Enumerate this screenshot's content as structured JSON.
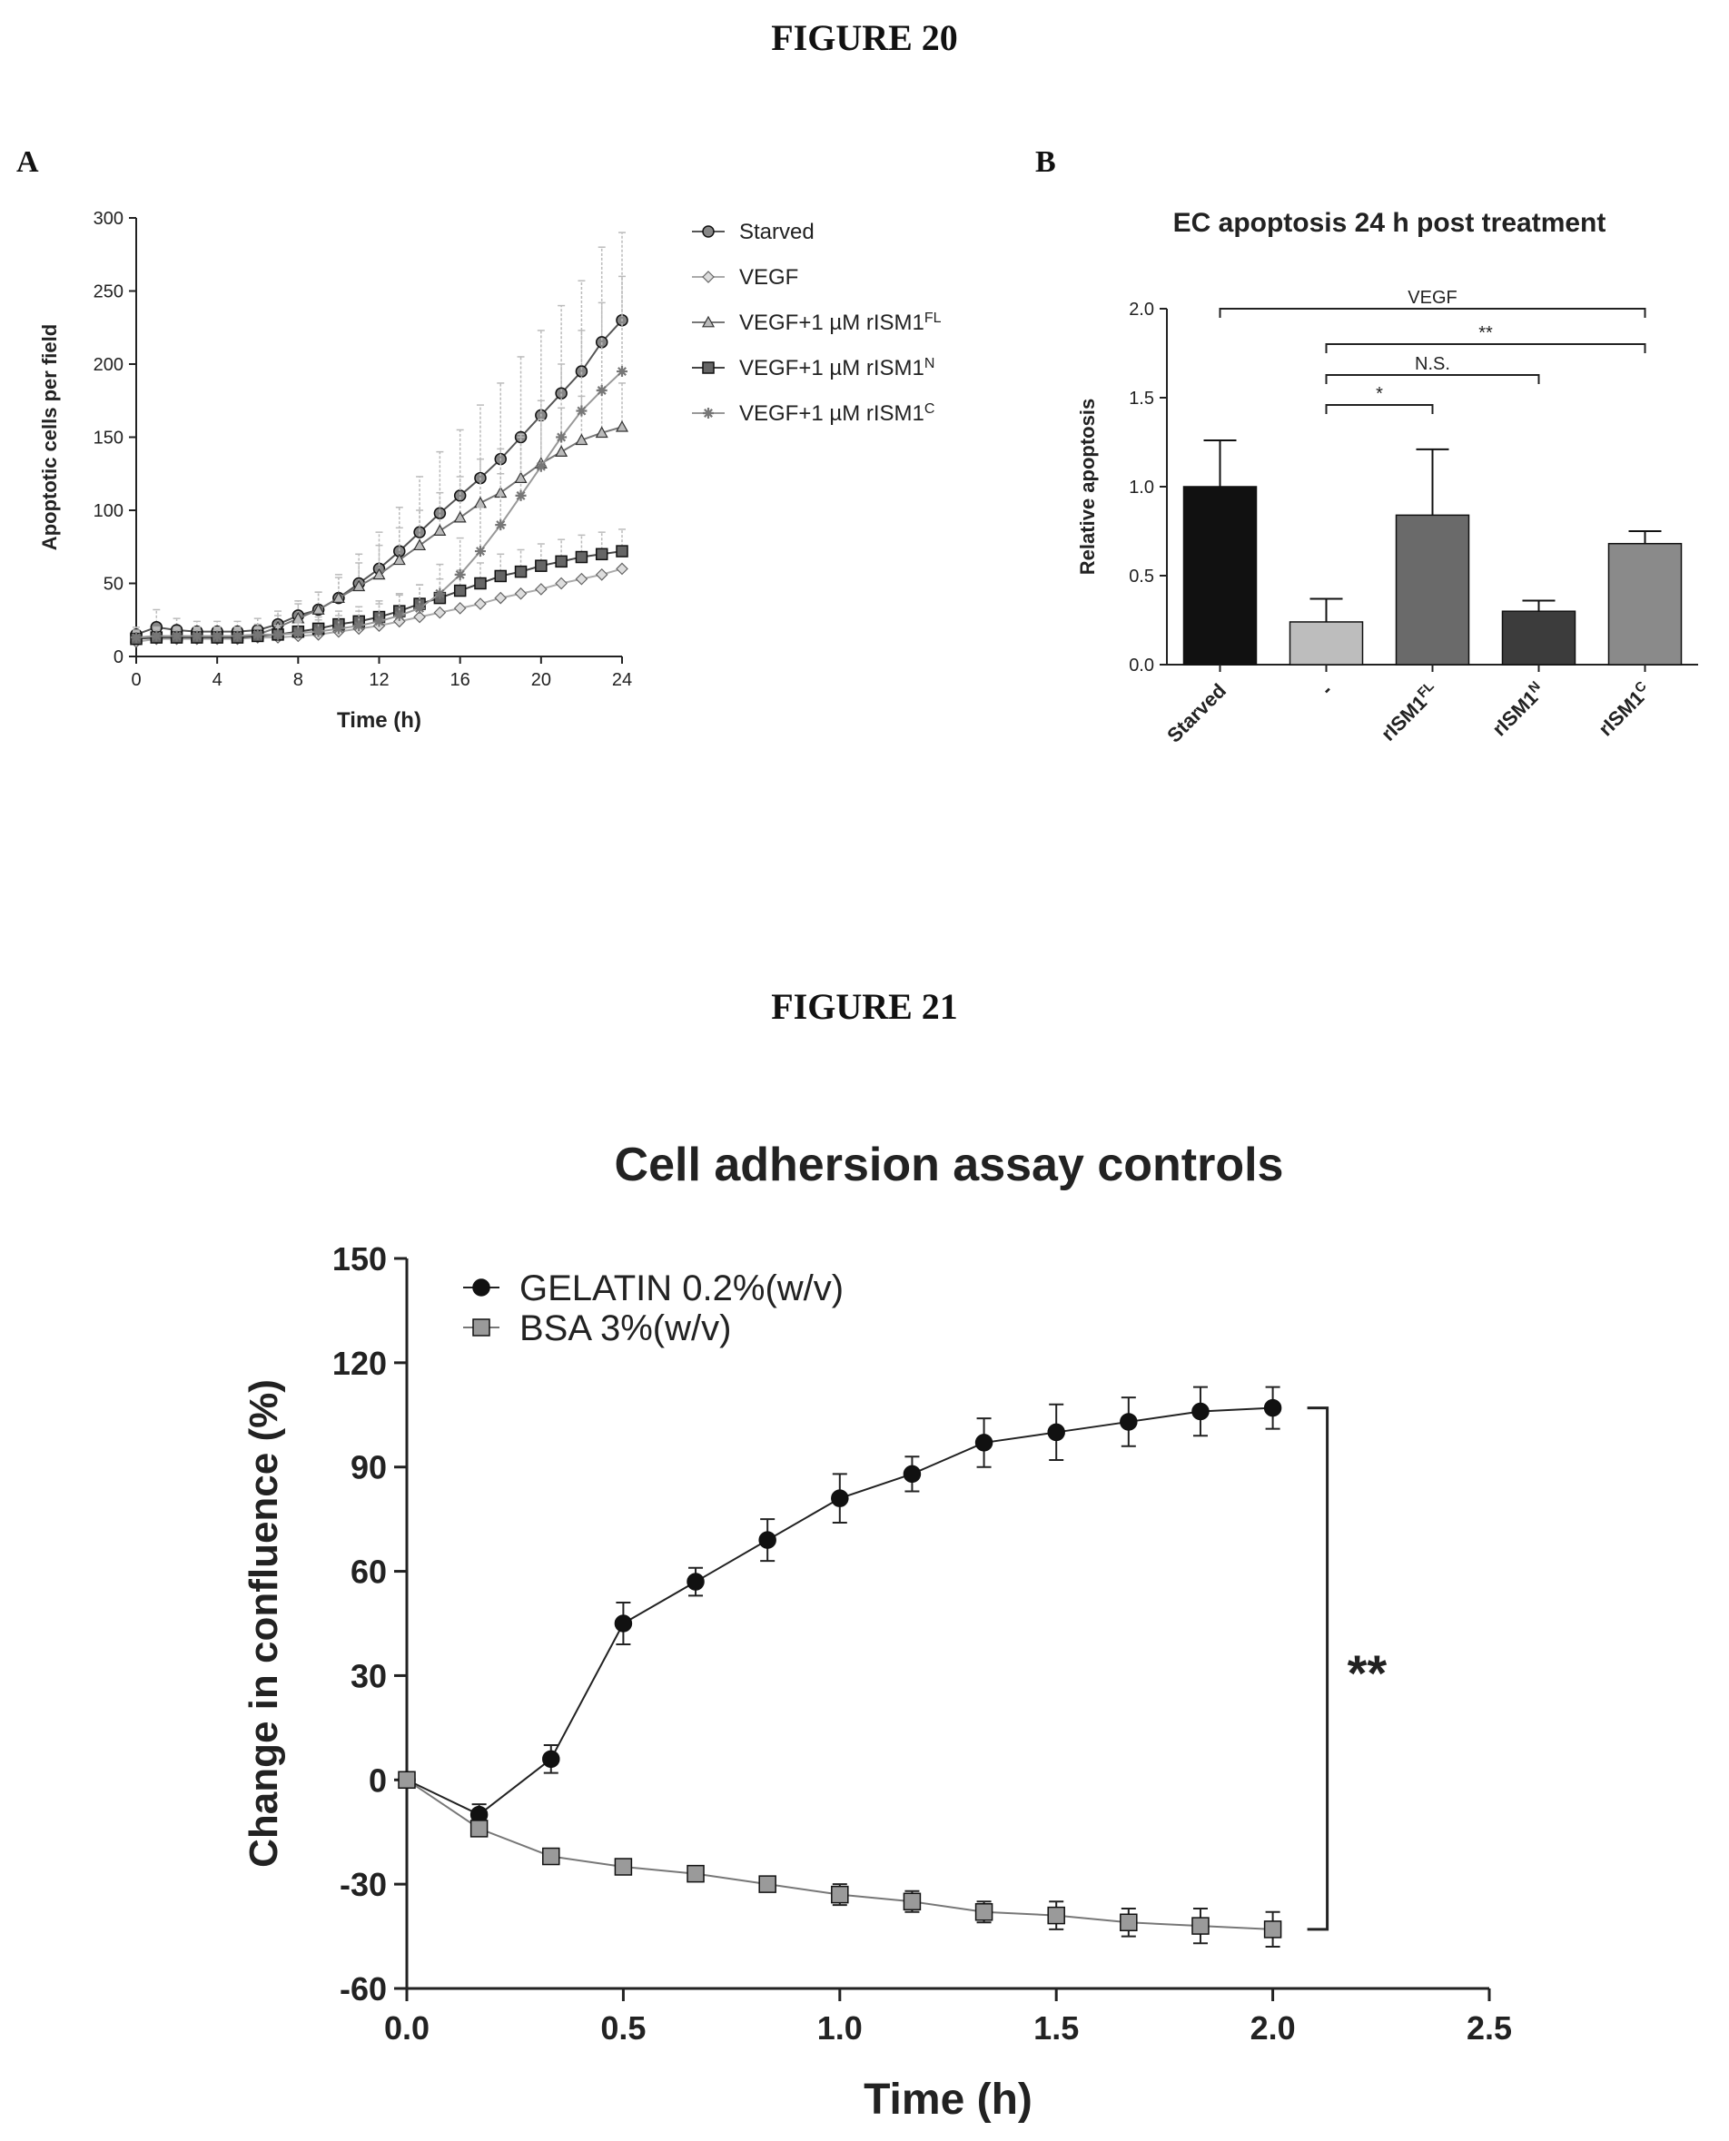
{
  "figure20_title": "FIGURE 20",
  "figure21_title": "FIGURE 21",
  "panel_a_letter": "A",
  "panel_b_letter": "B",
  "chart_data": [
    {
      "id": "fig20a",
      "type": "line",
      "title": "",
      "xlabel": "Time (h)",
      "ylabel": "Apoptotic cells per field",
      "xlim": [
        0,
        24
      ],
      "ylim": [
        0,
        300
      ],
      "xticks": [
        0,
        4,
        8,
        12,
        16,
        20,
        24
      ],
      "yticks": [
        0,
        50,
        100,
        150,
        200,
        250,
        300
      ],
      "legend_position": "right",
      "x": [
        0,
        1,
        2,
        3,
        4,
        5,
        6,
        7,
        8,
        9,
        10,
        11,
        12,
        13,
        14,
        15,
        16,
        17,
        18,
        19,
        20,
        21,
        22,
        23,
        24
      ],
      "series": [
        {
          "name": "Starved",
          "marker": "circle",
          "values": [
            15,
            20,
            18,
            17,
            17,
            17,
            18,
            22,
            28,
            32,
            40,
            50,
            60,
            72,
            85,
            98,
            110,
            122,
            135,
            150,
            165,
            180,
            195,
            215,
            230
          ],
          "error": [
            5,
            12,
            8,
            7,
            7,
            7,
            8,
            9,
            10,
            12,
            16,
            20,
            25,
            30,
            38,
            42,
            45,
            50,
            52,
            55,
            58,
            60,
            62,
            65,
            60
          ]
        },
        {
          "name": "VEGF",
          "marker": "diamond",
          "values": [
            10,
            12,
            12,
            12,
            12,
            12,
            13,
            13,
            14,
            15,
            17,
            19,
            21,
            24,
            27,
            30,
            33,
            36,
            40,
            43,
            46,
            50,
            53,
            56,
            60
          ]
        },
        {
          "name": "VEGF+1 µM rISM1",
          "sup": "FL",
          "marker": "triangle",
          "values": [
            13,
            14,
            14,
            14,
            14,
            14,
            15,
            20,
            26,
            32,
            40,
            48,
            56,
            66,
            76,
            86,
            95,
            105,
            112,
            122,
            132,
            140,
            148,
            153,
            157
          ],
          "error": [
            5,
            6,
            6,
            6,
            6,
            6,
            7,
            8,
            10,
            12,
            14,
            16,
            20,
            22,
            24,
            26,
            28,
            30,
            30,
            30,
            30,
            30,
            30,
            30,
            30
          ]
        },
        {
          "name": "VEGF+1 µM rISM1",
          "sup": "N",
          "marker": "square",
          "values": [
            12,
            13,
            13,
            13,
            13,
            13,
            14,
            15,
            17,
            19,
            22,
            24,
            27,
            31,
            36,
            40,
            45,
            50,
            55,
            58,
            62,
            65,
            68,
            70,
            72
          ],
          "error": [
            4,
            5,
            5,
            5,
            5,
            5,
            5,
            6,
            7,
            8,
            9,
            10,
            11,
            12,
            13,
            13,
            14,
            14,
            15,
            15,
            15,
            15,
            15,
            15,
            15
          ]
        },
        {
          "name": "VEGF+1 µM rISM1",
          "sup": "C",
          "marker": "star",
          "values": [
            13,
            14,
            14,
            14,
            14,
            14,
            15,
            15,
            16,
            17,
            19,
            21,
            24,
            28,
            33,
            43,
            56,
            72,
            90,
            110,
            130,
            150,
            168,
            182,
            195
          ],
          "error": [
            4,
            5,
            5,
            5,
            5,
            5,
            5,
            6,
            7,
            8,
            9,
            10,
            12,
            14,
            16,
            20,
            25,
            30,
            35,
            40,
            45,
            50,
            55,
            60,
            65
          ]
        }
      ]
    },
    {
      "id": "fig20b",
      "type": "bar",
      "title": "EC apoptosis 24 h post treatment",
      "xlabel": "",
      "ylabel": "Relative apoptosis",
      "ylim": [
        0,
        2.0
      ],
      "yticks": [
        "0.0",
        "0.5",
        "1.0",
        "1.5",
        "2.0"
      ],
      "categories": [
        {
          "label": "Starved",
          "sup": ""
        },
        {
          "label": "-",
          "sup": ""
        },
        {
          "label": "rISM1",
          "sup": "FL"
        },
        {
          "label": "rISM1",
          "sup": "N"
        },
        {
          "label": "rISM1",
          "sup": "C"
        }
      ],
      "values": [
        1.0,
        0.24,
        0.84,
        0.3,
        0.68
      ],
      "error": [
        0.26,
        0.13,
        0.37,
        0.06,
        0.07
      ],
      "bar_colors": [
        "#111111",
        "#bdbdbd",
        "#6a6a6a",
        "#3c3c3c",
        "#8a8a8a"
      ],
      "significance": [
        {
          "from": 1,
          "to": 2,
          "label": "*"
        },
        {
          "from": 1,
          "to": 3,
          "label": "N.S."
        },
        {
          "from": 1,
          "to": 4,
          "label": "**"
        },
        {
          "from": 0,
          "to": 4,
          "label": "VEGF"
        }
      ]
    },
    {
      "id": "fig21",
      "type": "line",
      "title": "Cell adhersion assay controls",
      "xlabel": "Time (h)",
      "ylabel": "Change in confluence (%)",
      "xlim": [
        0.0,
        2.5
      ],
      "ylim": [
        -60,
        150
      ],
      "xticks": [
        "0.0",
        "0.5",
        "1.0",
        "1.5",
        "2.0",
        "2.5"
      ],
      "yticks": [
        "-60",
        "-30",
        "0",
        "30",
        "60",
        "90",
        "120",
        "150"
      ],
      "legend_position": "top-left",
      "x": [
        0,
        0.167,
        0.333,
        0.5,
        0.667,
        0.833,
        1.0,
        1.167,
        1.333,
        1.5,
        1.667,
        1.833,
        2.0
      ],
      "series": [
        {
          "name": "GELATIN 0.2%(w/v)",
          "marker": "circle",
          "values": [
            0,
            -10,
            6,
            45,
            57,
            69,
            81,
            88,
            97,
            100,
            103,
            106,
            107
          ],
          "error": [
            1,
            3,
            4,
            6,
            4,
            6,
            7,
            5,
            7,
            8,
            7,
            7,
            6
          ]
        },
        {
          "name": "BSA 3%(w/v)",
          "marker": "square",
          "values": [
            0,
            -14,
            -22,
            -25,
            -27,
            -30,
            -33,
            -35,
            -38,
            -39,
            -41,
            -42,
            -43
          ],
          "error": [
            1,
            2,
            2,
            2,
            2,
            2,
            3,
            3,
            3,
            4,
            4,
            5,
            5
          ]
        }
      ],
      "annotation": "**"
    }
  ]
}
